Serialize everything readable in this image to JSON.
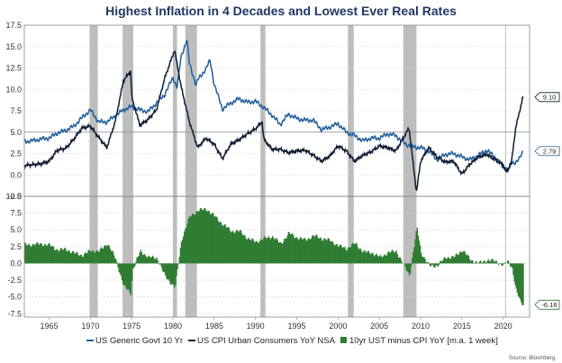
{
  "chart_data": {
    "type": "line",
    "title": "Highest Inflation in 4 Decades and Lowest Ever Real Rates",
    "source": "Source: Bloomberg.",
    "x_ticks": [
      1965,
      1970,
      1975,
      1980,
      1985,
      1990,
      1995,
      2000,
      2005,
      2010,
      2015,
      2020
    ],
    "xlim": [
      1962,
      2023.2
    ],
    "recessions": [
      [
        1969.9,
        1970.9
      ],
      [
        1973.9,
        1975.2
      ],
      [
        1980.0,
        1980.5
      ],
      [
        1981.5,
        1982.9
      ],
      [
        1990.6,
        1991.2
      ],
      [
        2001.2,
        2001.9
      ],
      [
        2007.9,
        2009.5
      ]
    ],
    "top_panel": {
      "ylim": [
        -2.5,
        17.5
      ],
      "y_ticks": [
        "17.5",
        "15.0",
        "12.5",
        "10.0",
        "7.5",
        "5.0",
        "2.5",
        "0.0",
        "-2.5"
      ],
      "series": [
        {
          "name": "US Generic Govt 10 Yr",
          "color": "#1f5f9c",
          "x": [
            1962,
            1963,
            1964,
            1965,
            1966,
            1967,
            1968,
            1969,
            1970,
            1971,
            1972,
            1973,
            1974,
            1975,
            1976,
            1977,
            1978,
            1979,
            1980,
            1980.5,
            1981,
            1981.7,
            1982,
            1982.8,
            1983,
            1984,
            1984.5,
            1985,
            1986,
            1987,
            1988,
            1989,
            1990,
            1991,
            1992,
            1993,
            1994,
            1995,
            1996,
            1997,
            1998,
            1999,
            2000,
            2001,
            2002,
            2003,
            2004,
            2005,
            2006,
            2007,
            2008,
            2009,
            2010,
            2011,
            2012,
            2013,
            2014,
            2015,
            2016,
            2017,
            2018,
            2019,
            2020,
            2020.6,
            2021,
            2021.5,
            2022,
            2022.4
          ],
          "values": [
            3.9,
            4.0,
            4.2,
            4.3,
            4.9,
            5.2,
            5.7,
            6.7,
            7.6,
            6.2,
            6.2,
            6.9,
            7.6,
            8.0,
            7.6,
            7.4,
            8.4,
            9.4,
            11.4,
            10.2,
            13.9,
            15.8,
            13.0,
            10.5,
            11.1,
            12.4,
            13.4,
            10.6,
            7.7,
            8.4,
            8.9,
            8.5,
            8.6,
            7.9,
            7.0,
            5.9,
            7.1,
            6.6,
            6.4,
            6.4,
            5.3,
            5.6,
            6.0,
            5.0,
            4.6,
            4.0,
            4.3,
            4.3,
            4.8,
            4.6,
            3.7,
            3.3,
            3.2,
            2.8,
            1.8,
            2.4,
            2.5,
            2.1,
            1.8,
            2.3,
            2.9,
            2.1,
            0.9,
            0.6,
            1.4,
            1.5,
            1.9,
            2.79
          ]
        },
        {
          "name": "US CPI Urban Consumers YoY NSA",
          "color": "#0d1b33",
          "x": [
            1962,
            1963,
            1964,
            1965,
            1966,
            1967,
            1968,
            1969,
            1970,
            1971,
            1972,
            1973,
            1974,
            1974.9,
            1975,
            1976,
            1977,
            1978,
            1979,
            1980.2,
            1981,
            1982,
            1983,
            1984,
            1985,
            1986,
            1987,
            1988,
            1989,
            1990,
            1990.8,
            1991,
            1992,
            1993,
            1994,
            1995,
            1996,
            1997,
            1998,
            1999,
            2000,
            2001,
            2002,
            2003,
            2004,
            2005,
            2006,
            2007,
            2008.6,
            2009.5,
            2010,
            2011,
            2012,
            2013,
            2014,
            2015,
            2016,
            2017,
            2018,
            2019,
            2020,
            2020.4,
            2021,
            2021.5,
            2022,
            2022.4
          ],
          "values": [
            1.1,
            1.2,
            1.3,
            1.6,
            2.9,
            3.1,
            4.2,
            5.5,
            5.7,
            4.4,
            3.2,
            6.2,
            11.0,
            12.2,
            9.1,
            5.8,
            6.5,
            7.6,
            11.3,
            14.6,
            10.3,
            6.2,
            3.2,
            4.3,
            3.6,
            1.9,
            3.6,
            4.1,
            4.8,
            5.4,
            6.2,
            4.2,
            3.0,
            3.0,
            2.6,
            2.8,
            2.9,
            2.3,
            1.6,
            2.2,
            3.4,
            2.8,
            1.6,
            2.3,
            2.7,
            3.4,
            3.2,
            2.8,
            5.5,
            -2.0,
            1.6,
            3.2,
            2.1,
            1.5,
            1.6,
            0.1,
            1.3,
            2.1,
            2.4,
            1.8,
            1.2,
            0.3,
            1.4,
            5.4,
            7.5,
            9.1
          ]
        }
      ],
      "end_labels": [
        "9.10",
        "2.79"
      ]
    },
    "bottom_panel": {
      "ylim": [
        -8.0,
        10.0
      ],
      "y_ticks": [
        "10.0",
        "7.5",
        "5.0",
        "2.5",
        "0.0",
        "-2.5",
        "-5.0",
        "-7.5"
      ],
      "series": [
        {
          "name": "10yr UST minus CPI YoY [m.a. 1 week]",
          "color": "#2e7d32",
          "x": [
            1962,
            1963,
            1964,
            1965,
            1966,
            1967,
            1968,
            1969,
            1970,
            1971,
            1972,
            1973,
            1974,
            1974.9,
            1975,
            1976,
            1977,
            1978,
            1979,
            1980.2,
            1981,
            1981.7,
            1982,
            1983,
            1984,
            1985,
            1986,
            1987,
            1988,
            1989,
            1990,
            1991,
            1992,
            1993,
            1994,
            1995,
            1996,
            1997,
            1998,
            1999,
            2000,
            2001,
            2002,
            2003,
            2004,
            2005,
            2006,
            2007,
            2008.6,
            2009.5,
            2010,
            2011,
            2012,
            2013,
            2014,
            2015,
            2016,
            2017,
            2018,
            2019,
            2020,
            2020.5,
            2021,
            2021.5,
            2022,
            2022.4
          ],
          "values": [
            2.8,
            2.8,
            2.9,
            2.7,
            2.0,
            2.1,
            1.5,
            1.2,
            1.9,
            1.8,
            3.0,
            0.7,
            -3.4,
            -4.5,
            -1.1,
            1.8,
            0.9,
            0.8,
            -1.9,
            -3.6,
            3.6,
            6.0,
            7.0,
            7.9,
            8.1,
            7.0,
            5.8,
            4.8,
            4.8,
            3.7,
            3.2,
            3.7,
            4.0,
            2.9,
            4.5,
            3.8,
            3.5,
            4.1,
            3.7,
            3.4,
            2.6,
            2.2,
            3.0,
            1.7,
            1.6,
            0.9,
            1.6,
            1.8,
            -1.8,
            5.3,
            1.6,
            -0.4,
            -0.3,
            0.9,
            0.9,
            2.0,
            0.5,
            0.0,
            0.5,
            0.3,
            -0.3,
            0.3,
            -0.5,
            -4.0,
            -5.6,
            -6.16
          ]
        }
      ],
      "end_labels": [
        "-6.16"
      ]
    },
    "legend_placement": "bottom"
  }
}
